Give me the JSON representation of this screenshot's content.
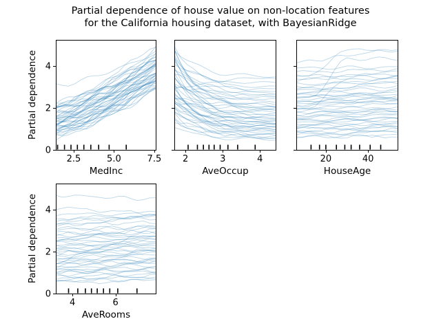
{
  "figure": {
    "title_line1": "Partial dependence of house value on non-location features",
    "title_line2": "for the California housing dataset, with BayesianRidge",
    "background_color": "#ffffff",
    "ice_line_color": "#1f77b4",
    "ice_line_alpha": 0.3,
    "axis_color": "#000000",
    "text_color": "#000000",
    "tick_font_px": 13
  },
  "chart_data": [
    {
      "type": "line",
      "kind": "ice-individual-curves",
      "feature": "MedInc",
      "xlabel": "MedInc",
      "ylabel": "Partial dependence",
      "xlim": [
        1.39,
        7.59
      ],
      "ylim": [
        0,
        5.25
      ],
      "xticks": [
        2.5,
        5.0,
        7.5
      ],
      "xtick_labels": [
        "2.5",
        "5.0",
        "7.5"
      ],
      "yticks": [
        0,
        2,
        4
      ],
      "ytick_labels": [
        "0",
        "2",
        "4"
      ],
      "decile_marks": [
        1.5,
        1.93,
        2.33,
        2.73,
        3.13,
        3.56,
        4.05,
        4.7,
        5.76
      ],
      "trend": "rise",
      "noise_amp": 0.17,
      "n_lines": 47,
      "lines_start_end": [
        [
          0.6,
          3.0
        ],
        [
          0.7,
          3.2
        ],
        [
          0.8,
          2.9
        ],
        [
          0.9,
          3.4
        ],
        [
          1.0,
          3.1
        ],
        [
          1.1,
          3.6
        ],
        [
          1.2,
          3.3
        ],
        [
          1.3,
          3.9
        ],
        [
          1.4,
          3.5
        ],
        [
          1.5,
          4.1
        ],
        [
          1.6,
          3.7
        ],
        [
          1.7,
          4.3
        ],
        [
          1.8,
          4.0
        ],
        [
          1.9,
          4.5
        ],
        [
          2.0,
          4.2
        ],
        [
          2.1,
          4.7
        ],
        [
          2.2,
          4.4
        ],
        [
          0.65,
          2.85
        ],
        [
          0.75,
          3.15
        ],
        [
          0.85,
          3.45
        ],
        [
          0.95,
          3.0
        ],
        [
          1.05,
          3.55
        ],
        [
          1.15,
          3.25
        ],
        [
          1.25,
          3.7
        ],
        [
          1.35,
          3.45
        ],
        [
          1.45,
          3.95
        ],
        [
          1.55,
          3.6
        ],
        [
          1.65,
          4.15
        ],
        [
          1.75,
          3.8
        ],
        [
          1.85,
          4.35
        ],
        [
          1.95,
          4.05
        ],
        [
          2.05,
          4.55
        ],
        [
          2.15,
          4.25
        ],
        [
          0.7,
          2.95
        ],
        [
          0.9,
          3.3
        ],
        [
          1.1,
          3.5
        ],
        [
          1.3,
          3.8
        ],
        [
          1.5,
          4.0
        ],
        [
          1.7,
          4.2
        ],
        [
          1.9,
          4.4
        ],
        [
          2.1,
          4.85
        ],
        [
          1.0,
          3.2
        ],
        [
          1.2,
          3.45
        ],
        [
          1.4,
          3.75
        ],
        [
          1.6,
          4.05
        ],
        [
          2.2,
          5.0
        ],
        [
          3.05,
          4.6
        ]
      ]
    },
    {
      "type": "line",
      "kind": "ice-individual-curves",
      "feature": "AveOccup",
      "xlabel": "AveOccup",
      "ylabel": "",
      "xlim": [
        1.7,
        4.42
      ],
      "ylim": [
        0,
        5.25
      ],
      "xticks": [
        2,
        3,
        4
      ],
      "xtick_labels": [
        "2",
        "3",
        "4"
      ],
      "yticks": [
        0,
        2,
        4
      ],
      "ytick_labels": [],
      "decile_marks": [
        2.07,
        2.32,
        2.48,
        2.63,
        2.77,
        2.93,
        3.14,
        3.4,
        3.87
      ],
      "trend": "fall",
      "noise_amp": 0.13,
      "n_lines": 46,
      "lines_start_end": [
        [
          4.9,
          1.9
        ],
        [
          4.6,
          2.4
        ],
        [
          4.4,
          1.5
        ],
        [
          4.2,
          2.0
        ],
        [
          4.0,
          1.2
        ],
        [
          3.9,
          2.6
        ],
        [
          3.7,
          1.7
        ],
        [
          3.6,
          2.9
        ],
        [
          3.4,
          1.4
        ],
        [
          3.3,
          2.2
        ],
        [
          3.1,
          1.0
        ],
        [
          3.0,
          2.5
        ],
        [
          2.9,
          1.6
        ],
        [
          2.8,
          3.4
        ],
        [
          2.7,
          1.2
        ],
        [
          2.6,
          2.0
        ],
        [
          2.5,
          0.9
        ],
        [
          2.4,
          1.8
        ],
        [
          2.3,
          1.1
        ],
        [
          2.2,
          1.5
        ],
        [
          2.1,
          0.8
        ],
        [
          2.0,
          1.3
        ],
        [
          1.9,
          0.7
        ],
        [
          1.8,
          1.1
        ],
        [
          4.8,
          3.5
        ],
        [
          4.5,
          3.0
        ],
        [
          4.3,
          2.7
        ],
        [
          4.1,
          3.2
        ],
        [
          3.8,
          2.3
        ],
        [
          3.5,
          1.9
        ],
        [
          3.2,
          2.6
        ],
        [
          2.95,
          2.1
        ],
        [
          2.75,
          1.45
        ],
        [
          2.55,
          1.7
        ],
        [
          2.35,
          1.25
        ],
        [
          2.15,
          0.95
        ],
        [
          1.7,
          0.65
        ],
        [
          1.5,
          0.6
        ],
        [
          1.3,
          0.55
        ],
        [
          1.1,
          0.5
        ],
        [
          5.0,
          2.8
        ],
        [
          4.7,
          2.1
        ],
        [
          3.0,
          0.85
        ],
        [
          2.6,
          1.35
        ],
        [
          2.2,
          1.05
        ],
        [
          1.6,
          0.75
        ]
      ]
    },
    {
      "type": "line",
      "kind": "ice-individual-curves",
      "feature": "HouseAge",
      "xlabel": "HouseAge",
      "ylabel": "",
      "xlim": [
        6,
        54
      ],
      "ylim": [
        0,
        5.25
      ],
      "xticks": [
        20,
        40
      ],
      "xtick_labels": [
        "20",
        "40"
      ],
      "yticks": [
        0,
        2,
        4
      ],
      "ytick_labels": [],
      "decile_marks": [
        13,
        17,
        20,
        25,
        29,
        32,
        36,
        41,
        46
      ],
      "trend": "drift",
      "noise_amp": 0.09,
      "n_lines": 46,
      "lines_start_end": [
        [
          4.15,
          4.85
        ],
        [
          3.6,
          4.75
        ],
        [
          3.9,
          3.95
        ],
        [
          3.5,
          3.6
        ],
        [
          3.3,
          3.75
        ],
        [
          3.15,
          3.2
        ],
        [
          3.0,
          3.45
        ],
        [
          2.85,
          2.9
        ],
        [
          2.7,
          3.3
        ],
        [
          2.6,
          2.55
        ],
        [
          2.5,
          2.8
        ],
        [
          2.4,
          2.45
        ],
        [
          2.3,
          2.6
        ],
        [
          2.2,
          2.25
        ],
        [
          2.1,
          2.4
        ],
        [
          2.0,
          2.05
        ],
        [
          1.9,
          2.2
        ],
        [
          1.8,
          1.85
        ],
        [
          1.7,
          1.95
        ],
        [
          1.6,
          1.65
        ],
        [
          1.5,
          1.75
        ],
        [
          1.4,
          1.45
        ],
        [
          1.3,
          1.55
        ],
        [
          1.2,
          1.25
        ],
        [
          1.1,
          1.3
        ],
        [
          1.0,
          1.05
        ],
        [
          0.9,
          1.1
        ],
        [
          0.8,
          0.85
        ],
        [
          0.7,
          0.9
        ],
        [
          0.65,
          0.7
        ],
        [
          2.45,
          4.35
        ],
        [
          1.95,
          3.4
        ],
        [
          3.7,
          3.85
        ],
        [
          3.4,
          3.5
        ],
        [
          2.9,
          3.05
        ],
        [
          2.75,
          2.7
        ],
        [
          2.55,
          2.65
        ],
        [
          2.35,
          2.3
        ],
        [
          2.15,
          2.5
        ],
        [
          1.85,
          1.9
        ],
        [
          1.65,
          1.8
        ],
        [
          1.45,
          1.5
        ],
        [
          1.25,
          1.4
        ],
        [
          1.05,
          1.15
        ],
        [
          0.85,
          0.95
        ],
        [
          0.6,
          0.65
        ]
      ]
    },
    {
      "type": "line",
      "kind": "ice-individual-curves",
      "feature": "AveRooms",
      "xlabel": "AveRooms",
      "ylabel": "Partial dependence",
      "xlim": [
        3.23,
        7.86
      ],
      "ylim": [
        0,
        5.25
      ],
      "xticks": [
        4,
        6
      ],
      "xtick_labels": [
        "4",
        "6"
      ],
      "yticks": [
        0,
        2,
        4
      ],
      "ytick_labels": [
        "0",
        "2",
        "4"
      ],
      "decile_marks": [
        3.82,
        4.25,
        4.6,
        4.88,
        5.15,
        5.44,
        5.73,
        6.1,
        6.99
      ],
      "trend": "flat",
      "noise_amp": 0.1,
      "n_lines": 46,
      "lines_start_end": [
        [
          4.7,
          4.5
        ],
        [
          4.1,
          3.8
        ],
        [
          3.75,
          3.85
        ],
        [
          3.6,
          3.7
        ],
        [
          3.5,
          3.55
        ],
        [
          3.35,
          3.8
        ],
        [
          3.2,
          3.75
        ],
        [
          3.1,
          3.15
        ],
        [
          3.05,
          3.2
        ],
        [
          2.9,
          2.95
        ],
        [
          2.8,
          2.7
        ],
        [
          2.7,
          2.8
        ],
        [
          2.6,
          2.65
        ],
        [
          2.5,
          2.6
        ],
        [
          2.4,
          2.5
        ],
        [
          2.3,
          2.45
        ],
        [
          2.2,
          2.3
        ],
        [
          2.1,
          2.2
        ],
        [
          2.0,
          2.1
        ],
        [
          1.9,
          2.0
        ],
        [
          1.8,
          1.9
        ],
        [
          1.7,
          1.85
        ],
        [
          1.6,
          1.7
        ],
        [
          1.5,
          1.65
        ],
        [
          1.4,
          1.5
        ],
        [
          1.3,
          1.45
        ],
        [
          1.2,
          1.35
        ],
        [
          1.1,
          1.25
        ],
        [
          1.0,
          1.15
        ],
        [
          0.9,
          1.05
        ],
        [
          0.8,
          0.95
        ],
        [
          0.7,
          0.85
        ],
        [
          0.6,
          0.8
        ],
        [
          1.45,
          3.1
        ],
        [
          1.25,
          2.2
        ],
        [
          2.45,
          3.2
        ],
        [
          1.85,
          2.6
        ],
        [
          0.95,
          1.6
        ],
        [
          2.25,
          2.35
        ],
        [
          1.55,
          1.6
        ],
        [
          3.3,
          3.4
        ],
        [
          2.85,
          2.9
        ],
        [
          1.05,
          1.1
        ],
        [
          0.65,
          0.7
        ],
        [
          1.95,
          2.05
        ],
        [
          0.55,
          0.6
        ]
      ]
    }
  ]
}
